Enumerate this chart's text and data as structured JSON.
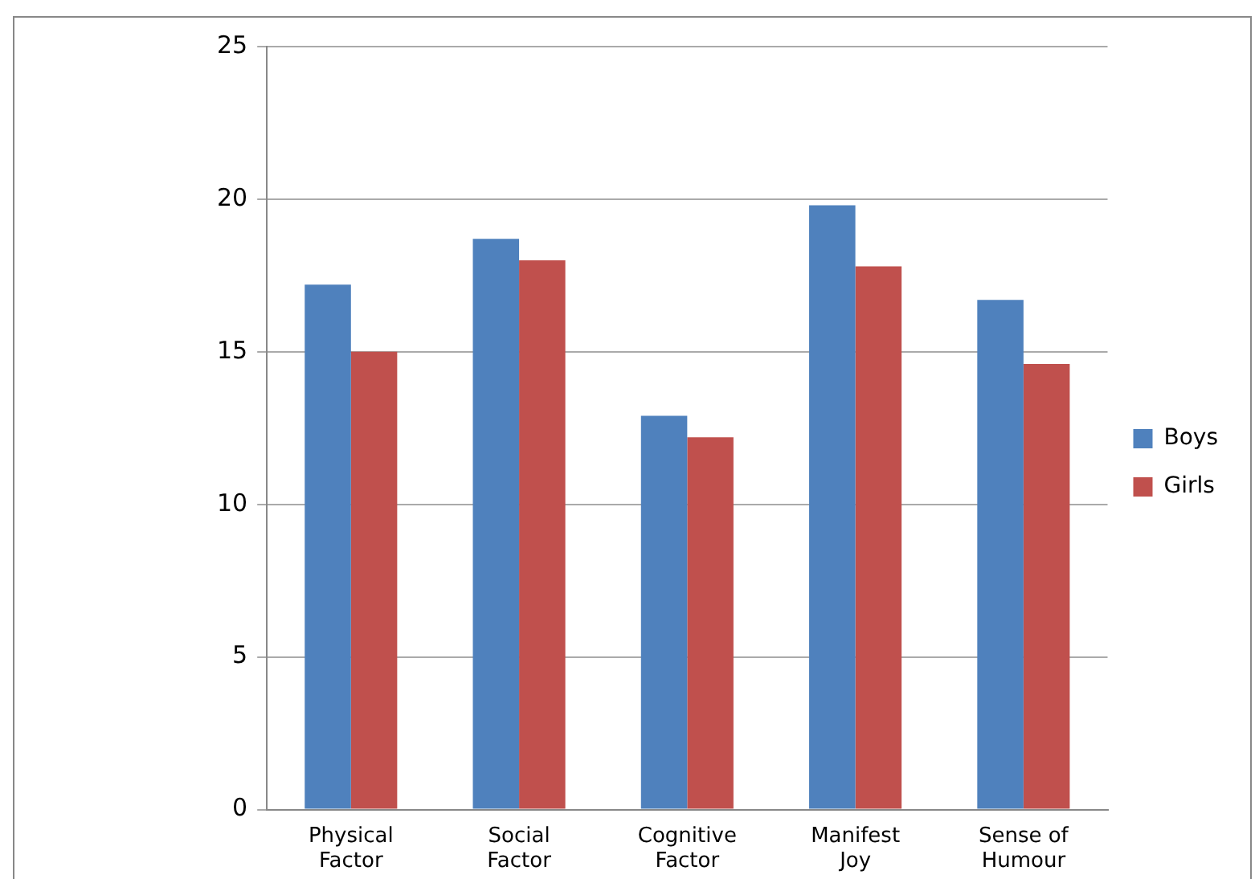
{
  "chart_data": {
    "type": "bar",
    "categories": [
      "Physical Factor",
      "Social Factor",
      "Cognitive Factor",
      "Manifest Joy",
      "Sense of Humour"
    ],
    "series": [
      {
        "name": "Boys",
        "color": "#4f81bd",
        "values": [
          17.2,
          18.7,
          12.9,
          19.8,
          16.7
        ]
      },
      {
        "name": "Girls",
        "color": "#c0504d",
        "values": [
          15.0,
          18.0,
          12.2,
          17.8,
          14.6
        ]
      }
    ],
    "ylim": [
      0,
      25
    ],
    "yticks": [
      0,
      5,
      10,
      15,
      20,
      25
    ],
    "grid": "y",
    "legend": "right"
  }
}
